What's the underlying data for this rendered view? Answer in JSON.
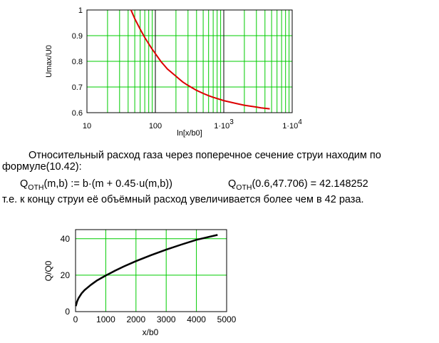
{
  "chart_data": [
    {
      "type": "line",
      "xscale": "log",
      "xlim": [
        10,
        10000
      ],
      "ylim": [
        0.6,
        1.0
      ],
      "xlabel": "ln[x/b0]",
      "ylabel": "Umax/U0",
      "title": "",
      "grid": true,
      "x_tick_labels": [
        "10",
        "100",
        "1·10³",
        "1·10⁴"
      ],
      "y_tick_labels": [
        "0.6",
        "0.7",
        "0.8",
        "0.9",
        "1"
      ],
      "y_ticks": [
        0.6,
        0.7,
        0.8,
        0.9,
        1.0
      ],
      "colors": {
        "grid": "#00cc00",
        "series": "#dd0000"
      },
      "series": [
        {
          "x": [
            44,
            50,
            60,
            70,
            80,
            90,
            100,
            120,
            150,
            200,
            250,
            300,
            400,
            500,
            600,
            700,
            800,
            1000,
            1200,
            1500,
            2000,
            2500,
            3000,
            3500,
            4000,
            4700
          ],
          "y": [
            1.0,
            0.966,
            0.925,
            0.893,
            0.868,
            0.847,
            0.83,
            0.8,
            0.77,
            0.742,
            0.72,
            0.706,
            0.687,
            0.675,
            0.666,
            0.66,
            0.655,
            0.647,
            0.642,
            0.636,
            0.629,
            0.625,
            0.622,
            0.619,
            0.617,
            0.615
          ]
        }
      ]
    },
    {
      "type": "line",
      "xlim": [
        0,
        5000
      ],
      "ylim": [
        0,
        45
      ],
      "xlabel": "x/b0",
      "ylabel": "Q/Q0",
      "title": "",
      "grid": true,
      "x_tick_labels": [
        "0",
        "1000",
        "2000",
        "3000",
        "4000",
        "5000"
      ],
      "x_ticks": [
        0,
        1000,
        2000,
        3000,
        4000,
        5000
      ],
      "y_tick_labels": [
        "0",
        "20",
        "40"
      ],
      "y_ticks": [
        0,
        20,
        40
      ],
      "colors": {
        "grid": "#00cc00",
        "series": "#000000"
      },
      "series": [
        {
          "x": [
            10,
            50,
            100,
            200,
            300,
            500,
            700,
            1000,
            1300,
            1600,
            2000,
            2500,
            3000,
            3500,
            4000,
            4700
          ],
          "y": [
            3.0,
            5.5,
            7.4,
            10.0,
            11.8,
            14.6,
            17.0,
            19.8,
            22.4,
            24.8,
            27.7,
            31.0,
            34.0,
            36.8,
            39.4,
            42.1
          ]
        }
      ]
    }
  ],
  "text": {
    "para_line1": "Относительный расход газа через поперечное сечение струи находим по",
    "para_line2": "формуле(10.42):",
    "formula_def_prefix": "Q",
    "formula_def_sub": "OTH",
    "formula_def_rest": "(m,b) := b·(m + 0.45·u(m,b))",
    "formula_eval_prefix": "Q",
    "formula_eval_sub": "OTH",
    "formula_eval_rest": "(0.6,47.706) = 42.148252",
    "conclusion": "т.е. к концу струи её объёмный расход увеличивается более чем в 42 раза."
  }
}
